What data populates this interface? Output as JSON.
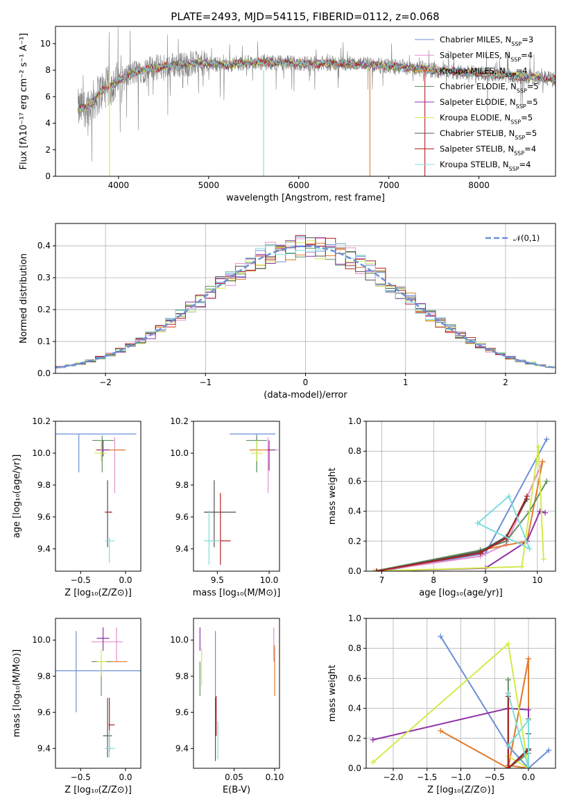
{
  "title": "PLATE=2493, MJD=54115, FIBERID=0112, z=0.068",
  "colors": {
    "chab_miles": "#6a8fd8",
    "salp_miles": "#e38fcf",
    "krou_miles": "#e07b2c",
    "chab_elodie": "#5f8f61",
    "salp_elodie": "#9030a8",
    "krou_elodie": "#d2ea4a",
    "chab_stelib": "#505050",
    "salp_stelib": "#b02020",
    "krou_stelib": "#7fdcdc",
    "data": "#808080"
  },
  "chart_data": [
    {
      "id": "spectrum",
      "type": "line",
      "xlabel": "wavelength [Angstrom, rest frame]",
      "ylabel": "Flux [fλ10⁻¹⁷ erg cm⁻² s⁻¹ A⁻¹]",
      "xlim": [
        3300,
        8850
      ],
      "ylim": [
        0,
        11.3
      ],
      "xticks": [
        4000,
        5000,
        6000,
        7000,
        8000
      ],
      "yticks": [
        0,
        2,
        4,
        6,
        8,
        10
      ],
      "xrange_data": [
        3550,
        8850
      ],
      "continuum": [
        [
          3550,
          5.0
        ],
        [
          3700,
          5.5
        ],
        [
          3800,
          6.4
        ],
        [
          4000,
          7.2
        ],
        [
          4200,
          7.9
        ],
        [
          4500,
          8.3
        ],
        [
          4800,
          8.5
        ],
        [
          5000,
          8.5
        ],
        [
          5200,
          8.4
        ],
        [
          5500,
          8.6
        ],
        [
          6000,
          8.5
        ],
        [
          6500,
          8.5
        ],
        [
          7000,
          8.3
        ],
        [
          7500,
          8.0
        ],
        [
          8000,
          7.8
        ],
        [
          8500,
          7.5
        ],
        [
          8850,
          7.3
        ]
      ],
      "legend": [
        {
          "label": "Chabrier MILES, N",
          "sub": "SSP",
          "suffix": "=3",
          "key": "chab_miles"
        },
        {
          "label": "Salpeter MILES, N",
          "sub": "SSP",
          "suffix": "=4",
          "key": "salp_miles"
        },
        {
          "label": "Kroupa MILES, N",
          "sub": "SSP",
          "suffix": "=4",
          "key": "krou_miles"
        },
        {
          "label": "Chabrier ELODIE, N",
          "sub": "SSP",
          "suffix": "=5",
          "key": "chab_elodie"
        },
        {
          "label": "Salpeter ELODIE, N",
          "sub": "SSP",
          "suffix": "=5",
          "key": "salp_elodie"
        },
        {
          "label": "Kroupa ELODIE, N",
          "sub": "SSP",
          "suffix": "=5",
          "key": "krou_elodie"
        },
        {
          "label": "Chabrier STELIB, N",
          "sub": "SSP",
          "suffix": "=5",
          "key": "chab_stelib"
        },
        {
          "label": "Salpeter STELIB, N",
          "sub": "SSP",
          "suffix": "=4",
          "key": "salp_stelib"
        },
        {
          "label": "Kroupa STELIB, N",
          "sub": "SSP",
          "suffix": "=4",
          "key": "krou_stelib"
        }
      ]
    },
    {
      "id": "residuals",
      "type": "histogram",
      "xlabel": "(data-model)/error",
      "ylabel": "Normed distribution",
      "xlim": [
        -2.5,
        2.5
      ],
      "ylim": [
        0,
        0.47
      ],
      "xticks": [
        -2,
        -1,
        0,
        1,
        2
      ],
      "yticks": [
        0.0,
        0.1,
        0.2,
        0.3,
        0.4
      ],
      "bin_width": 0.1,
      "legend_label": "𝒩(0,1)",
      "grid": true
    },
    {
      "id": "age_vs_Z",
      "type": "errorbar",
      "xlabel": "Z [log₁₀(Z/Z⊙)]",
      "ylabel": "age  [log₁₀(age/yr)]",
      "xlim": [
        -0.78,
        0.17
      ],
      "ylim": [
        9.26,
        10.2
      ],
      "xticks": [
        -0.5,
        0.0
      ],
      "yticks": [
        9.4,
        9.6,
        9.8,
        10.0,
        10.2
      ],
      "points": [
        {
          "key": "chab_miles",
          "x": -0.52,
          "xerr": [
            0.28,
            0.64
          ],
          "y": 10.12,
          "yerr": [
            0.24,
            0.0
          ]
        },
        {
          "key": "salp_miles",
          "x": -0.12,
          "xerr": [
            0.0,
            0.11
          ],
          "y": 10.02,
          "yerr": [
            0.27,
            0.08
          ]
        },
        {
          "key": "krou_miles",
          "x": -0.05,
          "xerr": [
            0.28,
            0.05
          ],
          "y": 10.02,
          "yerr": [
            0.0,
            0.0
          ]
        },
        {
          "key": "chab_elodie",
          "x": -0.26,
          "xerr": [
            0.11,
            0.13
          ],
          "y": 10.08,
          "yerr": [
            0.2,
            0.03
          ]
        },
        {
          "key": "salp_elodie",
          "x": -0.25,
          "xerr": [
            0.07,
            0.07
          ],
          "y": 10.02,
          "yerr": [
            0.04,
            0.06
          ]
        },
        {
          "key": "krou_elodie",
          "x": -0.27,
          "xerr": [
            0.08,
            0.06
          ],
          "y": 10.0,
          "yerr": [
            0.05,
            0.08
          ]
        },
        {
          "key": "chab_stelib",
          "x": -0.2,
          "xerr": [
            0.03,
            0.05
          ],
          "y": 9.63,
          "yerr": [
            0.22,
            0.2
          ]
        },
        {
          "key": "salp_stelib",
          "x": -0.2,
          "xerr": [
            0.02,
            0.05
          ],
          "y": 9.63,
          "yerr": [
            0.0,
            0.0
          ]
        },
        {
          "key": "krou_stelib",
          "x": -0.18,
          "xerr": [
            0.05,
            0.06
          ],
          "y": 9.45,
          "yerr": [
            0.14,
            0.02
          ]
        }
      ]
    },
    {
      "id": "age_vs_mass",
      "type": "errorbar",
      "xlabel": "mass [log₁₀(M/M⊙)]",
      "ylabel": "",
      "xlim": [
        9.27,
        10.1
      ],
      "ylim": [
        9.26,
        10.2
      ],
      "xticks": [
        9.5,
        10.0
      ],
      "yticks": [
        9.4,
        9.6,
        9.8,
        10.0,
        10.2
      ],
      "points": [
        {
          "key": "chab_miles",
          "x": 9.88,
          "xerr": [
            0.26,
            0.18
          ],
          "y": 10.12,
          "yerr": [
            0.24,
            0.0
          ]
        },
        {
          "key": "salp_miles",
          "x": 9.99,
          "xerr": [
            0.0,
            0.1
          ],
          "y": 10.02,
          "yerr": [
            0.27,
            0.08
          ]
        },
        {
          "key": "krou_miles",
          "x": 9.99,
          "xerr": [
            0.18,
            0.01
          ],
          "y": 10.02,
          "yerr": [
            0.0,
            0.0
          ]
        },
        {
          "key": "chab_elodie",
          "x": 9.88,
          "xerr": [
            0.1,
            0.1
          ],
          "y": 10.08,
          "yerr": [
            0.2,
            0.03
          ]
        },
        {
          "key": "salp_elodie",
          "x": 10.0,
          "xerr": [
            0.02,
            0.06
          ],
          "y": 10.02,
          "yerr": [
            0.13,
            0.06
          ]
        },
        {
          "key": "krou_elodie",
          "x": 9.88,
          "xerr": [
            0.06,
            0.06
          ],
          "y": 10.0,
          "yerr": [
            0.05,
            0.08
          ]
        },
        {
          "key": "chab_stelib",
          "x": 9.47,
          "xerr": [
            0.1,
            0.21
          ],
          "y": 9.63,
          "yerr": [
            0.22,
            0.2
          ]
        },
        {
          "key": "salp_stelib",
          "x": 9.53,
          "xerr": [
            0.0,
            0.1
          ],
          "y": 9.45,
          "yerr": [
            0.15,
            0.3
          ]
        },
        {
          "key": "krou_stelib",
          "x": 9.42,
          "xerr": [
            0.05,
            0.1
          ],
          "y": 9.45,
          "yerr": [
            0.15,
            0.19
          ]
        }
      ]
    },
    {
      "id": "weight_vs_age",
      "type": "line",
      "xlabel": "age  [log₁₀(age/yr)]",
      "ylabel": "mass weight",
      "xlim": [
        6.7,
        10.35
      ],
      "ylim": [
        0,
        1.0
      ],
      "xticks": [
        7,
        8,
        9,
        10
      ],
      "yticks": [
        0.0,
        0.2,
        0.4,
        0.6,
        0.8,
        1.0
      ],
      "grid": true,
      "series": [
        {
          "key": "chab_miles",
          "x": [
            7.0,
            9.0,
            10.18
          ],
          "y": [
            0.0,
            0.12,
            0.88
          ]
        },
        {
          "key": "salp_miles",
          "x": [
            6.9,
            8.9,
            9.4,
            10.1
          ],
          "y": [
            0.0,
            0.1,
            0.18,
            0.73
          ]
        },
        {
          "key": "krou_miles",
          "x": [
            6.9,
            8.9,
            9.8,
            10.1
          ],
          "y": [
            0.0,
            0.14,
            0.2,
            0.73
          ]
        },
        {
          "key": "chab_elodie",
          "x": [
            6.85,
            8.9,
            9.4,
            9.85,
            10.18
          ],
          "y": [
            0.0,
            0.14,
            0.2,
            0.4,
            0.6
          ]
        },
        {
          "key": "salp_elodie",
          "x": [
            6.9,
            9.0,
            9.8,
            10.05,
            10.15
          ],
          "y": [
            0.0,
            0.02,
            0.2,
            0.4,
            0.39
          ]
        },
        {
          "key": "krou_elodie",
          "x": [
            6.85,
            9.7,
            10.02,
            10.12
          ],
          "y": [
            0.0,
            0.03,
            0.83,
            0.08
          ]
        },
        {
          "key": "chab_stelib",
          "x": [
            6.9,
            8.9,
            9.4,
            9.8
          ],
          "y": [
            0.0,
            0.13,
            0.23,
            0.48
          ]
        },
        {
          "key": "salp_stelib",
          "x": [
            6.9,
            8.9,
            9.4,
            9.8
          ],
          "y": [
            0.0,
            0.12,
            0.22,
            0.5
          ]
        },
        {
          "key": "krou_stelib",
          "x": [
            8.85,
            9.45,
            9.85,
            8.85
          ],
          "y": [
            0.32,
            0.5,
            0.15,
            0.32
          ]
        }
      ]
    },
    {
      "id": "mass_vs_Z",
      "type": "errorbar",
      "xlabel": "Z [log₁₀(Z/Z⊙)]",
      "ylabel": "mass [log₁₀(M/M⊙)]",
      "xlim": [
        -0.78,
        0.17
      ],
      "ylim": [
        9.29,
        10.12
      ],
      "xticks": [
        -0.5,
        0.0
      ],
      "yticks": [
        9.4,
        9.6,
        9.8,
        10.0
      ],
      "points": [
        {
          "key": "chab_miles",
          "x": -0.55,
          "xerr": [
            0.23,
            0.72
          ],
          "y": 9.83,
          "yerr": [
            0.23,
            0.22
          ]
        },
        {
          "key": "salp_miles",
          "x": -0.1,
          "xerr": [
            0.28,
            0.07
          ],
          "y": 9.99,
          "yerr": [
            0.11,
            0.08
          ]
        },
        {
          "key": "krou_miles",
          "x": -0.1,
          "xerr": [
            0.28,
            0.12
          ],
          "y": 9.88,
          "yerr": [
            0.0,
            0.0
          ]
        },
        {
          "key": "chab_elodie",
          "x": -0.27,
          "xerr": [
            0.1,
            0.11
          ],
          "y": 9.88,
          "yerr": [
            0.19,
            0.0
          ]
        },
        {
          "key": "salp_elodie",
          "x": -0.25,
          "xerr": [
            0.07,
            0.07
          ],
          "y": 10.01,
          "yerr": [
            0.07,
            0.06
          ]
        },
        {
          "key": "krou_elodie",
          "x": -0.27,
          "xerr": [
            0.05,
            0.06
          ],
          "y": 9.88,
          "yerr": [
            0.08,
            0.07
          ]
        },
        {
          "key": "chab_stelib",
          "x": -0.2,
          "xerr": [
            0.05,
            0.05
          ],
          "y": 9.47,
          "yerr": [
            0.12,
            0.21
          ]
        },
        {
          "key": "salp_stelib",
          "x": -0.18,
          "xerr": [
            0.01,
            0.06
          ],
          "y": 9.53,
          "yerr": [
            0.15,
            0.15
          ]
        },
        {
          "key": "krou_stelib",
          "x": -0.18,
          "xerr": [
            0.05,
            0.06
          ],
          "y": 9.4,
          "yerr": [
            0.05,
            0.1
          ]
        }
      ]
    },
    {
      "id": "mass_vs_ebv",
      "type": "errorbar",
      "xlabel": "E(B-V)",
      "ylabel": "",
      "xlim": [
        0.0,
        0.106
      ],
      "ylim": [
        9.29,
        10.12
      ],
      "xticks": [
        0.05,
        0.1
      ],
      "yticks": [
        9.4,
        9.6,
        9.8,
        10.0
      ],
      "points": [
        {
          "key": "chab_miles",
          "x": 0.027,
          "xerr": [
            0.0,
            0.0
          ],
          "y": 9.83,
          "yerr": [
            0.23,
            0.22
          ]
        },
        {
          "key": "salp_miles",
          "x": 0.099,
          "xerr": [
            0.0,
            0.0
          ],
          "y": 9.99,
          "yerr": [
            0.11,
            0.08
          ]
        },
        {
          "key": "krou_miles",
          "x": 0.1,
          "xerr": [
            0.0,
            0.0
          ],
          "y": 9.88,
          "yerr": [
            0.19,
            0.09
          ]
        },
        {
          "key": "chab_elodie",
          "x": 0.008,
          "xerr": [
            0.0,
            0.0
          ],
          "y": 9.88,
          "yerr": [
            0.19,
            0.0
          ]
        },
        {
          "key": "salp_elodie",
          "x": 0.008,
          "xerr": [
            0.0,
            0.0
          ],
          "y": 10.01,
          "yerr": [
            0.07,
            0.06
          ]
        },
        {
          "key": "krou_elodie",
          "x": 0.01,
          "xerr": [
            0.0,
            0.0
          ],
          "y": 9.88,
          "yerr": [
            0.13,
            0.08
          ]
        },
        {
          "key": "chab_stelib",
          "x": 0.027,
          "xerr": [
            0.0,
            0.0
          ],
          "y": 9.47,
          "yerr": [
            0.14,
            0.21
          ]
        },
        {
          "key": "salp_stelib",
          "x": 0.028,
          "xerr": [
            0.0,
            0.0
          ],
          "y": 9.6,
          "yerr": [
            0.13,
            0.09
          ]
        },
        {
          "key": "krou_stelib",
          "x": 0.03,
          "xerr": [
            0.0,
            0.0
          ],
          "y": 9.4,
          "yerr": [
            0.06,
            0.15
          ]
        }
      ]
    },
    {
      "id": "weight_vs_Z",
      "type": "line",
      "xlabel": "Z [log₁₀(Z/Z⊙)]",
      "ylabel": "mass weight",
      "xlim": [
        -2.4,
        0.4
      ],
      "ylim": [
        0,
        1.0
      ],
      "xticks": [
        -2.0,
        -1.5,
        -1.0,
        -0.5,
        0.0
      ],
      "yticks": [
        0.0,
        0.2,
        0.4,
        0.6,
        0.8,
        1.0
      ],
      "grid": true,
      "series": [
        {
          "key": "chab_miles",
          "x": [
            -1.3,
            -0.3,
            0.0,
            0.3
          ],
          "y": [
            0.88,
            0.15,
            0.0,
            0.12
          ]
        },
        {
          "key": "salp_miles",
          "x": [
            -0.3,
            0.0,
            0.0
          ],
          "y": [
            0.0,
            0.73,
            0.0
          ]
        },
        {
          "key": "krou_miles",
          "x": [
            -1.3,
            -0.3,
            0.0,
            0.0,
            -0.3
          ],
          "y": [
            0.25,
            0.0,
            0.73,
            0.0,
            0.02
          ]
        },
        {
          "key": "chab_elodie",
          "x": [
            -0.3,
            -0.3,
            0.0,
            0.0
          ],
          "y": [
            0.59,
            0.0,
            0.1,
            0.33
          ]
        },
        {
          "key": "salp_elodie",
          "x": [
            -2.3,
            -0.3,
            0.0,
            0.0
          ],
          "y": [
            0.19,
            0.4,
            0.39,
            0.0
          ]
        },
        {
          "key": "krou_elodie",
          "x": [
            -2.3,
            -0.3,
            0.0,
            -0.3
          ],
          "y": [
            0.04,
            0.83,
            0.0,
            0.08
          ]
        },
        {
          "key": "chab_stelib",
          "x": [
            -0.3,
            -0.3,
            0.0,
            0.0
          ],
          "y": [
            0.48,
            0.0,
            0.13,
            0.23
          ]
        },
        {
          "key": "salp_stelib",
          "x": [
            -0.3,
            -0.3,
            0.0
          ],
          "y": [
            0.5,
            0.0,
            0.12
          ]
        },
        {
          "key": "krou_stelib",
          "x": [
            -0.3,
            0.0,
            0.0,
            -0.3
          ],
          "y": [
            0.15,
            0.32,
            0.0,
            0.5
          ]
        }
      ]
    }
  ]
}
